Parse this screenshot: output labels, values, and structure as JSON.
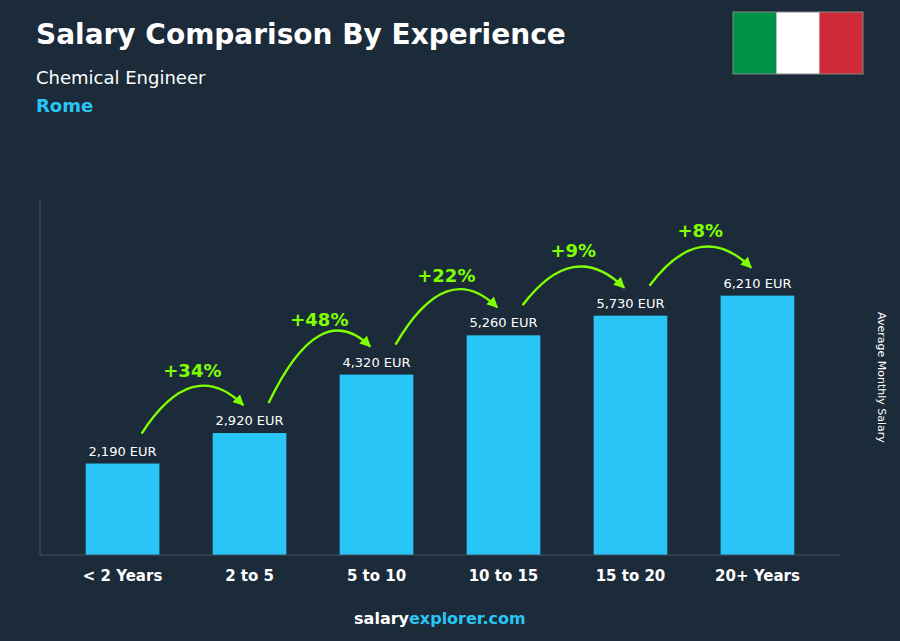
{
  "chart_data": {
    "type": "bar",
    "title": "Salary Comparison By Experience",
    "subtitle": "Chemical Engineer",
    "ylabel": "Average Monthly Salary",
    "categories": [
      "< 2 Years",
      "2 to 5",
      "5 to 10",
      "10 to 15",
      "15 to 20",
      "20+ Years"
    ],
    "values": [
      2190,
      2920,
      4320,
      5260,
      5730,
      6210
    ],
    "value_labels": [
      "2,190 EUR",
      "2,920 EUR",
      "4,320 EUR",
      "5,260 EUR",
      "5,730 EUR",
      "6,210 EUR"
    ],
    "data_labels": true,
    "color": "#29C5F6",
    "ylim": [
      0,
      8500
    ],
    "tick_labels": "x",
    "grid": false,
    "arrows": [
      {
        "from": 0,
        "to": 1,
        "label": "+34%"
      },
      {
        "from": 1,
        "to": 2,
        "label": "+48%"
      },
      {
        "from": 2,
        "to": 3,
        "label": "+22%"
      },
      {
        "from": 3,
        "to": 4,
        "label": "+9%"
      },
      {
        "from": 4,
        "to": 5,
        "label": "+8%"
      }
    ],
    "arrow_color": "#7FFF00",
    "annotations": [
      {
        "text": "Rome",
        "color": "#29C5F6"
      },
      {
        "text": "salary",
        "color": "#ffffff"
      },
      {
        "text": "explorer.com",
        "color": "#29C5F6"
      }
    ],
    "background": "#1C2B3A",
    "flag_colors": [
      "#009246",
      "#ffffff",
      "#CE2B37"
    ]
  }
}
